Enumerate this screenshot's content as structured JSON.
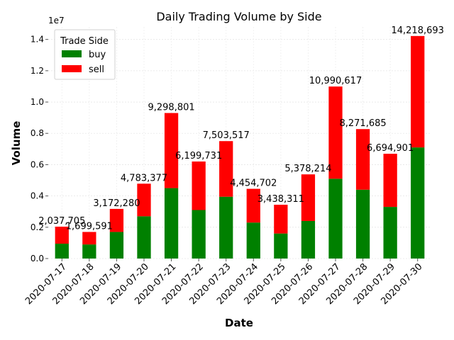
{
  "chart_data": {
    "type": "bar",
    "stacked": true,
    "title": "Daily Trading Volume by Side",
    "xlabel": "Date",
    "ylabel": "Volume",
    "y_offset_label": "1e7",
    "ylim": [
      0,
      14800000
    ],
    "y_ticks": [
      0,
      2000000,
      4000000,
      6000000,
      8000000,
      10000000,
      12000000,
      14000000
    ],
    "y_tick_labels": [
      "0.0",
      "0.2",
      "0.4",
      "0.6",
      "0.8",
      "1.0",
      "1.2",
      "1.4"
    ],
    "grid": true,
    "legend": {
      "title": "Trade Side",
      "position": "top-left"
    },
    "categories": [
      "2020-07-17",
      "2020-07-18",
      "2020-07-19",
      "2020-07-20",
      "2020-07-21",
      "2020-07-22",
      "2020-07-23",
      "2020-07-24",
      "2020-07-25",
      "2020-07-26",
      "2020-07-27",
      "2020-07-28",
      "2020-07-29",
      "2020-07-30"
    ],
    "series": [
      {
        "name": "buy",
        "color": "#008000",
        "values": [
          950000,
          900000,
          1700000,
          2700000,
          4500000,
          3100000,
          3950000,
          2300000,
          1600000,
          2400000,
          5100000,
          4400000,
          3300000,
          7100000
        ]
      },
      {
        "name": "sell",
        "color": "#ff0000",
        "values": [
          1087705,
          799591,
          1472280,
          2083377,
          4798801,
          3099731,
          3553517,
          2154702,
          1838311,
          2978214,
          5890617,
          3871685,
          3394901,
          7118693
        ]
      }
    ],
    "totals": [
      2037705,
      1699591,
      3172280,
      4783377,
      9298801,
      6199731,
      7503517,
      4454702,
      3438311,
      5378214,
      10990617,
      8271685,
      6694901,
      14218693
    ],
    "total_labels": [
      "2,037,705",
      "1,699,591",
      "3,172,280",
      "4,783,377",
      "9,298,801",
      "6,199,731",
      "7,503,517",
      "4,454,702",
      "3,438,311",
      "5,378,214",
      "10,990,617",
      "8,271,685",
      "6,694,901",
      "14,218,693"
    ]
  }
}
